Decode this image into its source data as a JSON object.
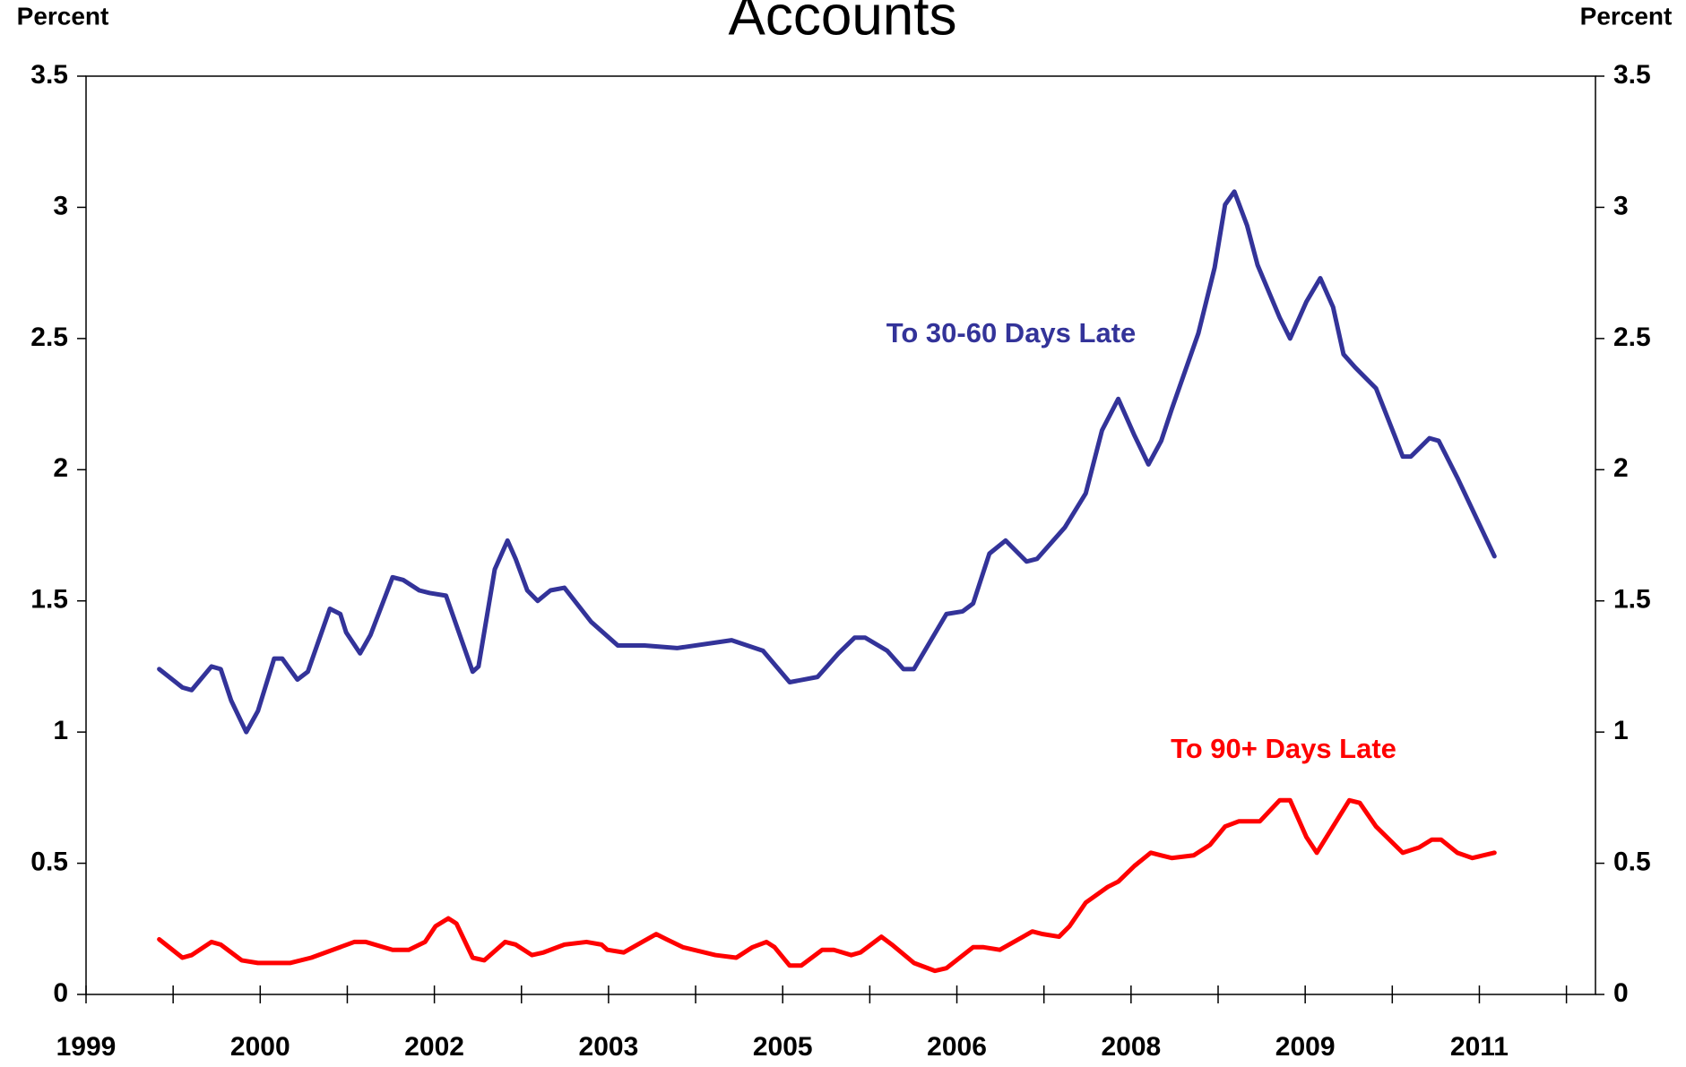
{
  "chart_data": {
    "type": "line",
    "title": "Accounts",
    "y_label": "Percent",
    "y2_label": "Percent",
    "xlim": [
      1999,
      2012
    ],
    "xticks": [
      {
        "value": 1999,
        "label": "1999"
      },
      {
        "value": 2000.5,
        "label": "2000"
      },
      {
        "value": 2002,
        "label": "2002"
      },
      {
        "value": 2003.5,
        "label": "2003"
      },
      {
        "value": 2005,
        "label": "2005"
      },
      {
        "value": 2006.5,
        "label": "2006"
      },
      {
        "value": 2008,
        "label": "2008"
      },
      {
        "value": 2009.5,
        "label": "2009"
      },
      {
        "value": 2011,
        "label": "2011"
      }
    ],
    "minor_xticks": [
      1999.75,
      2001.25,
      2002.75,
      2004.25,
      2005.75,
      2007.25,
      2008.75,
      2010.25,
      2011.75
    ],
    "ylim": [
      0,
      3.5
    ],
    "yticks": [
      0,
      0.5,
      1,
      1.5,
      2,
      2.5,
      3,
      3.5
    ],
    "y2lim": [
      0,
      3.5
    ],
    "y2ticks": [
      0,
      0.5,
      1,
      1.5,
      2,
      2.5,
      3,
      3.5
    ],
    "grid": false,
    "series": [
      {
        "name": "To 30-60 Days Late",
        "color": "#333399",
        "x": [
          1999.63,
          1999.83,
          1999.91,
          2000.08,
          2000.16,
          2000.25,
          2000.38,
          2000.48,
          2000.62,
          2000.69,
          2000.82,
          2000.91,
          2001.1,
          2001.19,
          2001.24,
          2001.36,
          2001.45,
          2001.64,
          2001.73,
          2001.87,
          2001.96,
          2002.1,
          2002.33,
          2002.38,
          2002.52,
          2002.63,
          2002.7,
          2002.8,
          2002.89,
          2003.0,
          2003.12,
          2003.35,
          2003.58,
          2003.81,
          2004.09,
          2004.56,
          2004.83,
          2005.06,
          2005.3,
          2005.48,
          2005.62,
          2005.71,
          2005.9,
          2006.04,
          2006.13,
          2006.41,
          2006.55,
          2006.64,
          2006.78,
          2006.92,
          2007.1,
          2007.19,
          2007.43,
          2007.61,
          2007.75,
          2007.89,
          2008.03,
          2008.15,
          2008.26,
          2008.35,
          2008.58,
          2008.72,
          2008.81,
          2008.89,
          2009.0,
          2009.09,
          2009.28,
          2009.37,
          2009.51,
          2009.63,
          2009.74,
          2009.83,
          2009.93,
          2010.11,
          2010.27,
          2010.34,
          2010.41,
          2010.57,
          2010.65,
          2010.81,
          2011.13
        ],
        "values": [
          1.24,
          1.17,
          1.16,
          1.25,
          1.24,
          1.12,
          1.0,
          1.08,
          1.28,
          1.28,
          1.2,
          1.23,
          1.47,
          1.45,
          1.38,
          1.3,
          1.37,
          1.59,
          1.58,
          1.54,
          1.53,
          1.52,
          1.23,
          1.25,
          1.62,
          1.73,
          1.66,
          1.54,
          1.5,
          1.54,
          1.55,
          1.42,
          1.33,
          1.33,
          1.32,
          1.35,
          1.31,
          1.19,
          1.21,
          1.3,
          1.36,
          1.36,
          1.31,
          1.24,
          1.24,
          1.45,
          1.46,
          1.49,
          1.68,
          1.73,
          1.65,
          1.66,
          1.78,
          1.91,
          2.15,
          2.27,
          2.13,
          2.02,
          2.11,
          2.23,
          2.52,
          2.77,
          3.01,
          3.06,
          2.93,
          2.78,
          2.58,
          2.5,
          2.64,
          2.73,
          2.62,
          2.44,
          2.39,
          2.31,
          2.13,
          2.05,
          2.05,
          2.12,
          2.11,
          1.97,
          1.67
        ]
      },
      {
        "name": "To 90+ Days Late",
        "color": "#ff0000",
        "x": [
          1999.63,
          1999.83,
          1999.91,
          2000.08,
          2000.16,
          2000.34,
          2000.48,
          2000.76,
          2000.94,
          2001.31,
          2001.41,
          2001.64,
          2001.78,
          2001.92,
          2002.01,
          2002.12,
          2002.19,
          2002.33,
          2002.43,
          2002.61,
          2002.7,
          2002.84,
          2002.94,
          2003.12,
          2003.31,
          2003.44,
          2003.49,
          2003.63,
          2003.79,
          2003.91,
          2004.0,
          2004.14,
          2004.42,
          2004.6,
          2004.74,
          2004.86,
          2004.93,
          2005.06,
          2005.16,
          2005.34,
          2005.44,
          2005.59,
          2005.67,
          2005.85,
          2005.94,
          2006.13,
          2006.31,
          2006.41,
          2006.64,
          2006.73,
          2006.87,
          2007.15,
          2007.24,
          2007.38,
          2007.47,
          2007.61,
          2007.8,
          2007.89,
          2008.03,
          2008.17,
          2008.26,
          2008.35,
          2008.54,
          2008.68,
          2008.81,
          2008.93,
          2009.11,
          2009.28,
          2009.37,
          2009.51,
          2009.6,
          2009.74,
          2009.88,
          2009.97,
          2010.11,
          2010.34,
          2010.48,
          2010.59,
          2010.67,
          2010.81,
          2010.94,
          2011.13
        ],
        "values": [
          0.21,
          0.14,
          0.15,
          0.2,
          0.19,
          0.13,
          0.12,
          0.12,
          0.14,
          0.2,
          0.2,
          0.17,
          0.17,
          0.2,
          0.26,
          0.29,
          0.27,
          0.14,
          0.13,
          0.2,
          0.19,
          0.15,
          0.16,
          0.19,
          0.2,
          0.19,
          0.17,
          0.16,
          0.2,
          0.23,
          0.21,
          0.18,
          0.15,
          0.14,
          0.18,
          0.2,
          0.18,
          0.11,
          0.11,
          0.17,
          0.17,
          0.15,
          0.16,
          0.22,
          0.19,
          0.12,
          0.09,
          0.1,
          0.18,
          0.18,
          0.17,
          0.24,
          0.23,
          0.22,
          0.26,
          0.35,
          0.41,
          0.43,
          0.49,
          0.54,
          0.53,
          0.52,
          0.53,
          0.57,
          0.64,
          0.66,
          0.66,
          0.74,
          0.74,
          0.6,
          0.54,
          0.64,
          0.74,
          0.73,
          0.64,
          0.54,
          0.56,
          0.59,
          0.59,
          0.54,
          0.52,
          0.54
        ]
      }
    ]
  }
}
